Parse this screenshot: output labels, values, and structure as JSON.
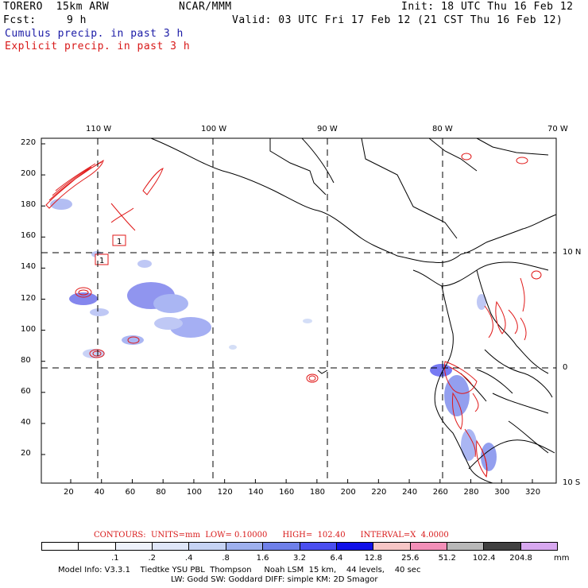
{
  "header": {
    "model": "TORERO  15km ARW",
    "org": "NCAR/MMM",
    "init": "Init: 18 UTC Thu 16 Feb 12",
    "fcst_label": "Fcst:",
    "fcst_value": "9 h",
    "valid": "Valid: 03 UTC Fri 17 Feb 12 (21 CST Thu 16 Feb 12)",
    "legend_cumulus": "Cumulus precip. in past 3 h",
    "legend_explicit": "Explicit precip. in past 3 h"
  },
  "map": {
    "lon_labels": [
      "110 W",
      "100 W",
      "90 W",
      "80 W",
      "70 W"
    ],
    "lat_labels": [
      "10 N",
      "0",
      "10 S"
    ],
    "y_ticks": [
      "220",
      "200",
      "180",
      "160",
      "140",
      "120",
      "100",
      "80",
      "60",
      "40",
      "20"
    ],
    "x_ticks": [
      "20",
      "40",
      "60",
      "80",
      "100",
      "120",
      "140",
      "160",
      "180",
      "200",
      "220",
      "240",
      "260",
      "280",
      "300",
      "320"
    ],
    "contour_labels": [
      "1",
      "1"
    ]
  },
  "contours_line": {
    "text": "CONTOURS:  UNITS=mm  LOW= 0.10000      HIGH=  102.40      INTERVAL=X  4.0000"
  },
  "colorbar": {
    "colors": [
      "#ffffff",
      "#ffffff",
      "#eef2fb",
      "#dfe6f8",
      "#c6d3f4",
      "#9eb0ee",
      "#6f80ea",
      "#4a4ef0",
      "#1010e8",
      "#f7c6c6",
      "#f38fb8",
      "#b8b8b8",
      "#404040",
      "#d8a8f0"
    ],
    "labels": [
      ".1",
      ".2",
      ".4",
      ".8",
      "1.6",
      "3.2",
      "6.4",
      "12.8",
      "25.6",
      "51.2",
      "102.4",
      "204.8"
    ],
    "units": "mm"
  },
  "footer": {
    "line1": "Model Info: V3.3.1    Tiedtke YSU PBL  Thompson     Noah LSM  15 km,    44 levels,    40 sec",
    "line2": "LW: Godd SW: Goddard DIFF: simple KM: 2D Smagor"
  }
}
